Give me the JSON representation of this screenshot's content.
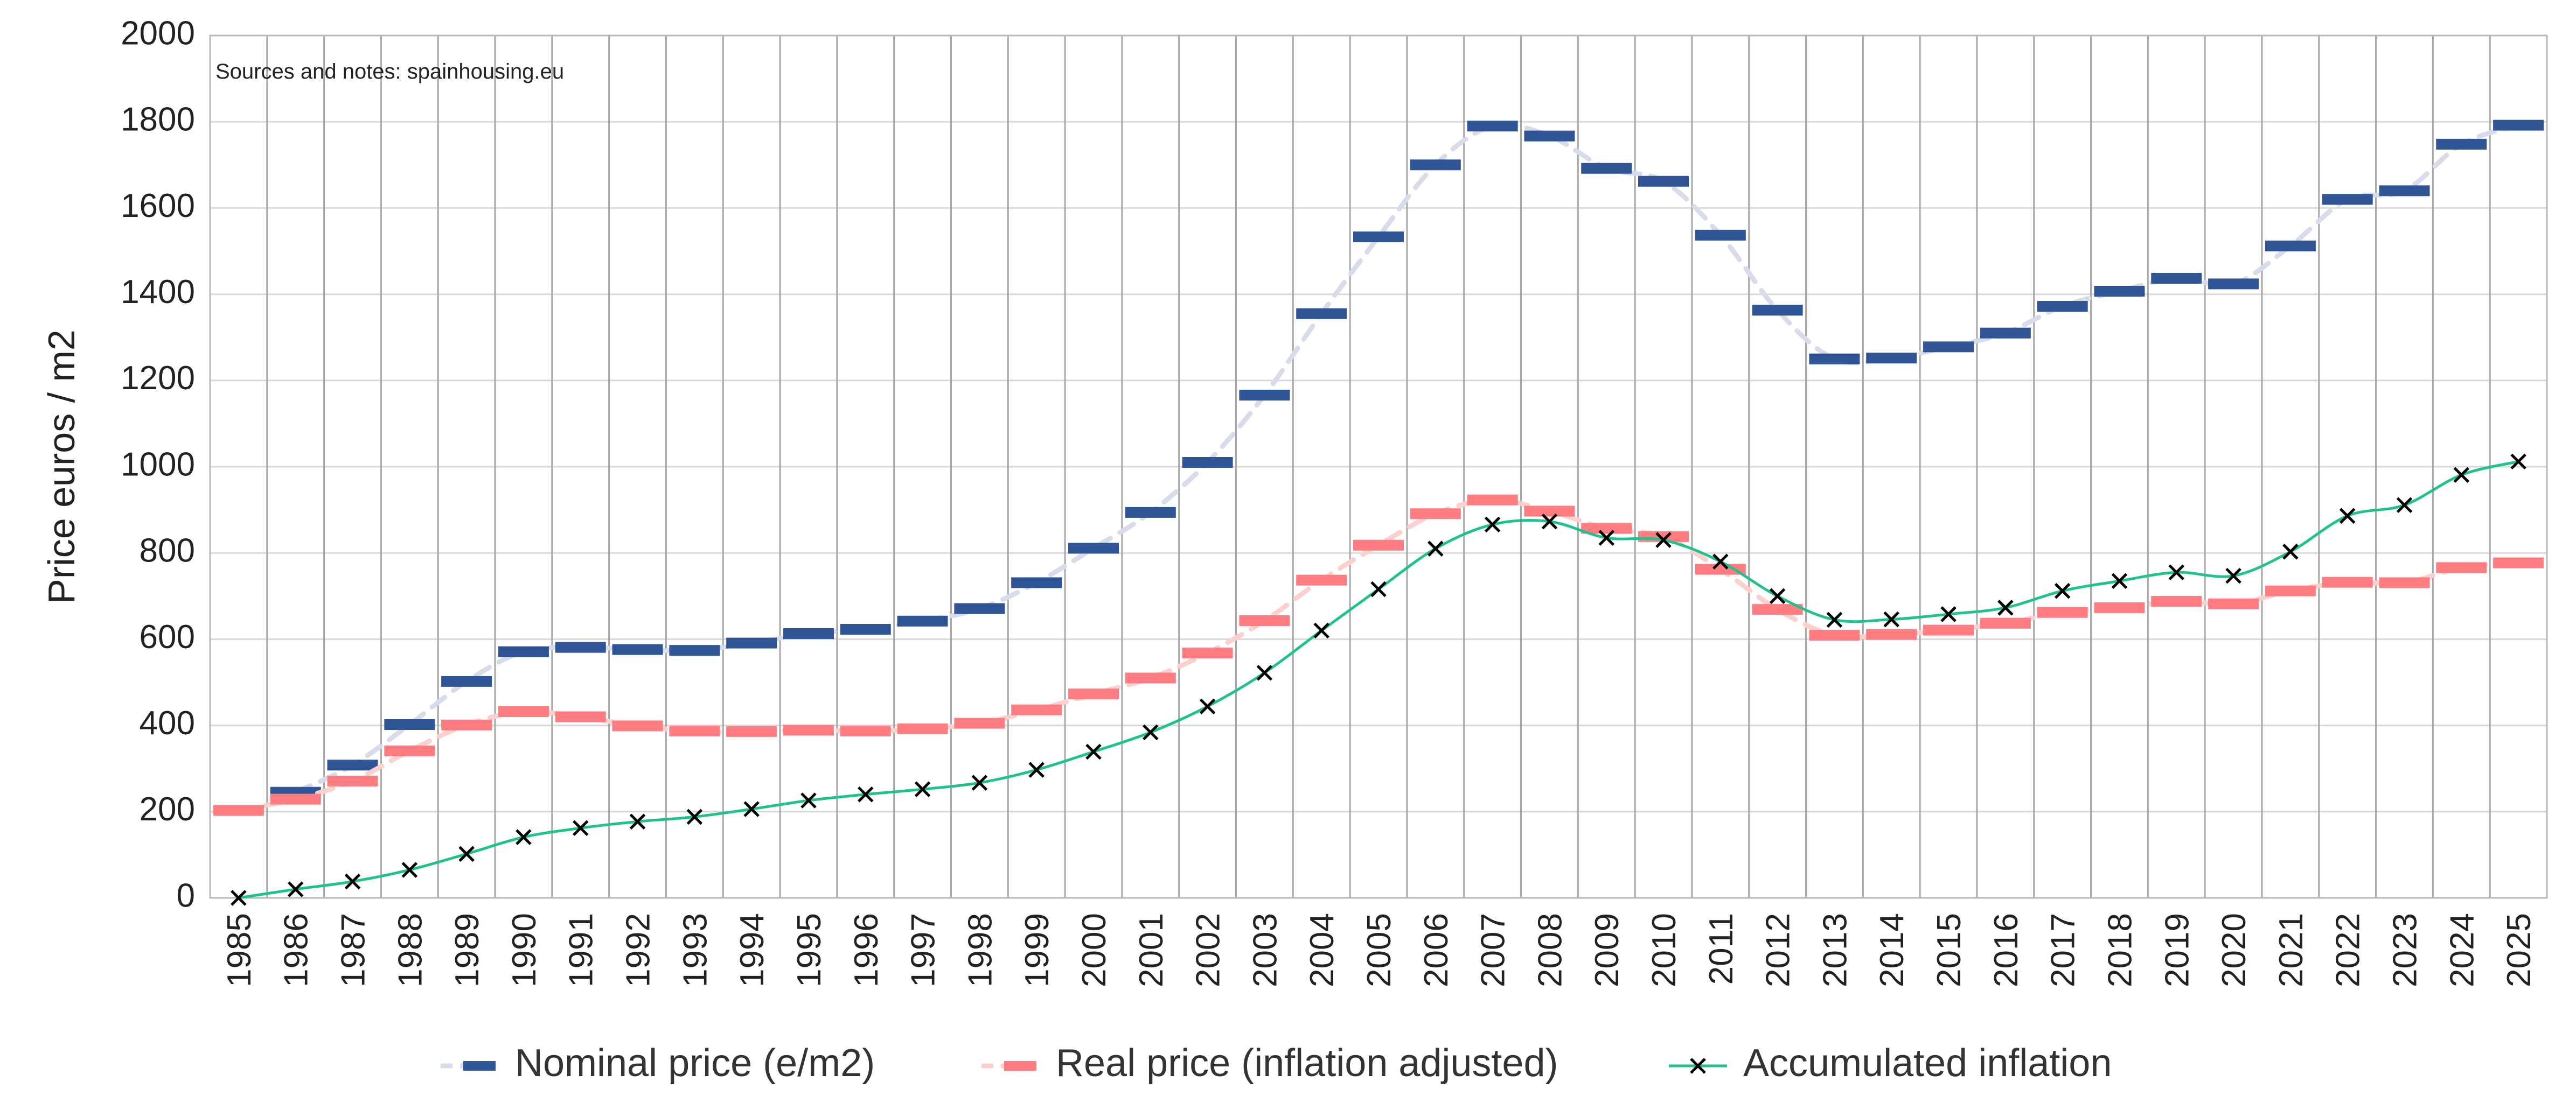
{
  "chart_data": {
    "type": "line",
    "ylabel": "Price euros / m2",
    "xlabel": "",
    "ylim": [
      0,
      2000
    ],
    "y_ticks": [
      "0",
      "200",
      "400",
      "600",
      "800",
      "1000",
      "1200",
      "1400",
      "1600",
      "1800",
      "2000"
    ],
    "grid": true,
    "legend_position": "bottom",
    "annotation": "Sources and notes: spainhousing.eu",
    "categories": [
      "1985",
      "1986",
      "1987",
      "1988",
      "1989",
      "1990",
      "1991",
      "1992",
      "1993",
      "1994",
      "1995",
      "1996",
      "1997",
      "1998",
      "1999",
      "2000",
      "2001",
      "2002",
      "2003",
      "2004",
      "2005",
      "2006",
      "2007",
      "2008",
      "2009",
      "2010",
      "2011",
      "2012",
      "2013",
      "2014",
      "2015",
      "2016",
      "2017",
      "2018",
      "2019",
      "2020",
      "2021",
      "2022",
      "2023",
      "2024",
      "2025"
    ],
    "series": [
      {
        "name": "Nominal price (e/m2)",
        "color": "#2f5597",
        "line_color": "#d6dcea",
        "style": "dash-marker",
        "values": [
          null,
          245,
          308,
          402,
          502,
          571,
          581,
          576,
          574,
          591,
          613,
          623,
          642,
          671,
          731,
          811,
          894,
          1010,
          1166,
          1355,
          1533,
          1700,
          1790,
          1767,
          1692,
          1662,
          1537,
          1363,
          1250,
          1252,
          1278,
          1310,
          1372,
          1407,
          1437,
          1424,
          1512,
          1620,
          1640,
          1748,
          1792
        ]
      },
      {
        "name": "Real price (inflation adjusted)",
        "color": "#ff7c80",
        "line_color": "#fcd0cc",
        "style": "dash-marker",
        "values": [
          203,
          229,
          271,
          341,
          401,
          432,
          420,
          399,
          387,
          386,
          389,
          387,
          392,
          405,
          436,
          473,
          510,
          568,
          643,
          737,
          818,
          891,
          923,
          897,
          857,
          838,
          762,
          669,
          609,
          611,
          621,
          637,
          662,
          673,
          688,
          682,
          712,
          732,
          731,
          766,
          777
        ]
      },
      {
        "name": "Accumulated inflation",
        "color": "#1fc18f",
        "marker_color": "#000000",
        "style": "line-x",
        "values": [
          0,
          20,
          38,
          65,
          102,
          141,
          162,
          177,
          188,
          206,
          226,
          240,
          252,
          267,
          297,
          339,
          384,
          444,
          522,
          620,
          716,
          810,
          866,
          873,
          835,
          830,
          780,
          700,
          645,
          646,
          658,
          673,
          712,
          735,
          755,
          747,
          803,
          886,
          911,
          981,
          1012
        ]
      }
    ]
  }
}
